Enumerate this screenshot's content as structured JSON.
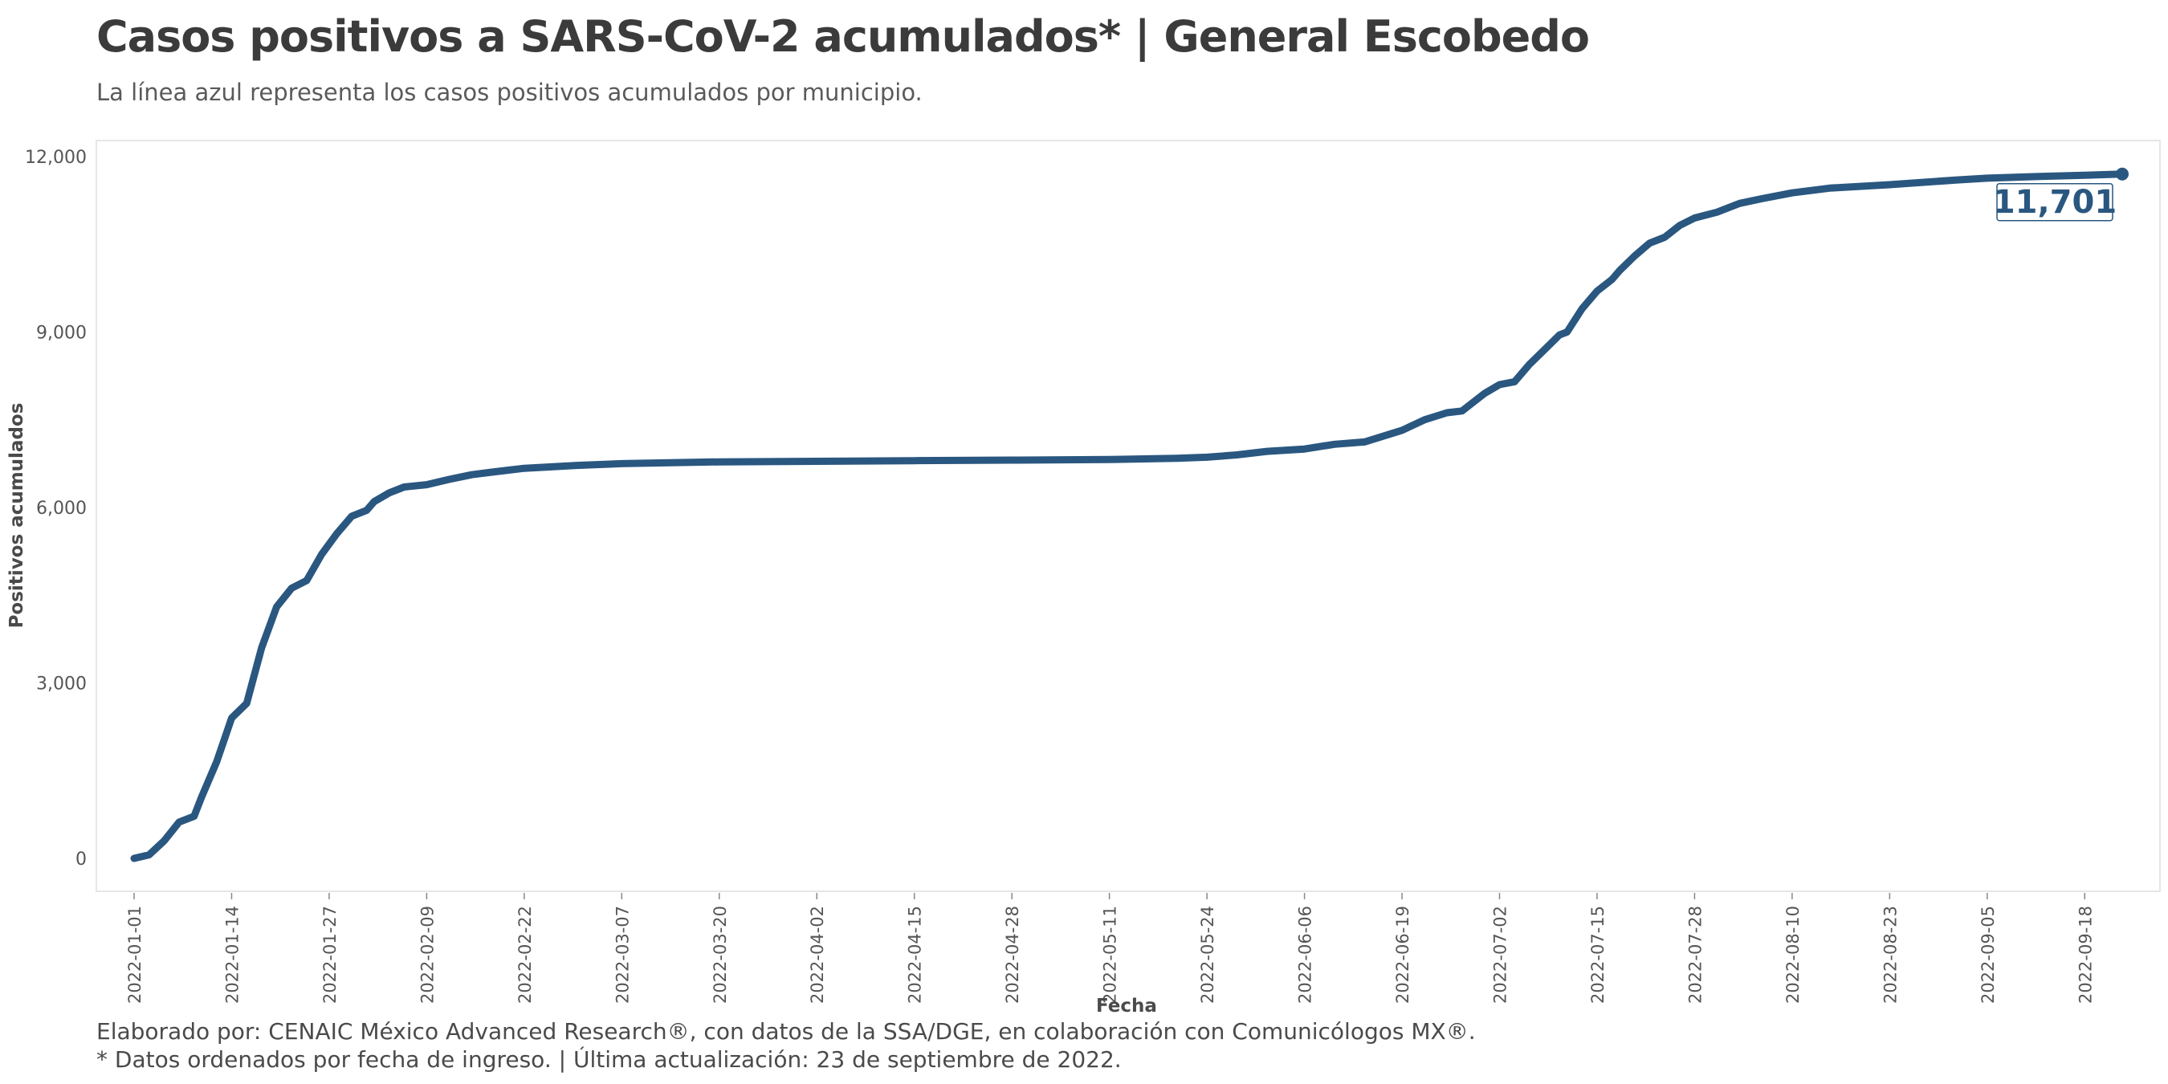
{
  "title": "Casos positivos a SARS-CoV-2 acumulados* | General Escobedo",
  "subtitle": "La línea azul representa los casos positivos acumulados por municipio.",
  "caption_line1": "Elaborado por: CENAIC México Advanced Research®, con datos de la SSA/DGE, en colaboración con Comunicólogos MX®.",
  "caption_line2": "* Datos ordenados por fecha de ingreso. | Última actualización: 23 de septiembre de 2022.",
  "colors": {
    "line": "#2a5780",
    "panel_border": "#e6e6e6",
    "text": "#3c3c3c"
  },
  "chart_data": {
    "type": "line",
    "xlabel": "Fecha",
    "ylabel": "Positivos acumulados",
    "x_range": [
      "2022-01-01",
      "2022-09-23"
    ],
    "ylim": [
      -600,
      12300
    ],
    "y_ticks": [
      0,
      3000,
      6000,
      9000,
      12000
    ],
    "y_tick_labels": [
      "0",
      "3,000",
      "6,000",
      "9,000",
      "12,000"
    ],
    "x_ticks": [
      "2022-01-01",
      "2022-01-14",
      "2022-01-27",
      "2022-02-09",
      "2022-02-22",
      "2022-03-07",
      "2022-03-20",
      "2022-04-02",
      "2022-04-15",
      "2022-04-28",
      "2022-05-11",
      "2022-05-24",
      "2022-06-06",
      "2022-06-19",
      "2022-07-02",
      "2022-07-15",
      "2022-07-28",
      "2022-08-10",
      "2022-08-23",
      "2022-09-05",
      "2022-09-18"
    ],
    "grid": false,
    "end_label": "11,701",
    "series": [
      {
        "points": [
          [
            "2022-01-01",
            0
          ],
          [
            "2022-01-03",
            60
          ],
          [
            "2022-01-05",
            300
          ],
          [
            "2022-01-07",
            620
          ],
          [
            "2022-01-09",
            720
          ],
          [
            "2022-01-10",
            1050
          ],
          [
            "2022-01-12",
            1650
          ],
          [
            "2022-01-14",
            2400
          ],
          [
            "2022-01-16",
            2650
          ],
          [
            "2022-01-18",
            3600
          ],
          [
            "2022-01-20",
            4300
          ],
          [
            "2022-01-22",
            4620
          ],
          [
            "2022-01-24",
            4750
          ],
          [
            "2022-01-26",
            5200
          ],
          [
            "2022-01-28",
            5550
          ],
          [
            "2022-01-30",
            5850
          ],
          [
            "2022-02-01",
            5950
          ],
          [
            "2022-02-02",
            6100
          ],
          [
            "2022-02-04",
            6250
          ],
          [
            "2022-02-06",
            6350
          ],
          [
            "2022-02-09",
            6390
          ],
          [
            "2022-02-12",
            6480
          ],
          [
            "2022-02-15",
            6560
          ],
          [
            "2022-02-18",
            6610
          ],
          [
            "2022-02-22",
            6670
          ],
          [
            "2022-03-01",
            6720
          ],
          [
            "2022-03-07",
            6750
          ],
          [
            "2022-03-20",
            6780
          ],
          [
            "2022-04-02",
            6790
          ],
          [
            "2022-04-15",
            6800
          ],
          [
            "2022-04-28",
            6810
          ],
          [
            "2022-05-11",
            6820
          ],
          [
            "2022-05-20",
            6840
          ],
          [
            "2022-05-24",
            6860
          ],
          [
            "2022-05-28",
            6900
          ],
          [
            "2022-06-01",
            6960
          ],
          [
            "2022-06-06",
            7000
          ],
          [
            "2022-06-10",
            7080
          ],
          [
            "2022-06-14",
            7120
          ],
          [
            "2022-06-19",
            7320
          ],
          [
            "2022-06-22",
            7500
          ],
          [
            "2022-06-25",
            7620
          ],
          [
            "2022-06-27",
            7650
          ],
          [
            "2022-06-30",
            7950
          ],
          [
            "2022-07-02",
            8100
          ],
          [
            "2022-07-04",
            8150
          ],
          [
            "2022-07-06",
            8450
          ],
          [
            "2022-07-08",
            8700
          ],
          [
            "2022-07-10",
            8950
          ],
          [
            "2022-07-11",
            9000
          ],
          [
            "2022-07-13",
            9400
          ],
          [
            "2022-07-15",
            9700
          ],
          [
            "2022-07-17",
            9900
          ],
          [
            "2022-07-18",
            10050
          ],
          [
            "2022-07-20",
            10300
          ],
          [
            "2022-07-22",
            10520
          ],
          [
            "2022-07-24",
            10620
          ],
          [
            "2022-07-26",
            10820
          ],
          [
            "2022-07-28",
            10950
          ],
          [
            "2022-07-31",
            11050
          ],
          [
            "2022-08-03",
            11200
          ],
          [
            "2022-08-06",
            11280
          ],
          [
            "2022-08-10",
            11380
          ],
          [
            "2022-08-15",
            11460
          ],
          [
            "2022-08-23",
            11520
          ],
          [
            "2022-09-01",
            11600
          ],
          [
            "2022-09-05",
            11630
          ],
          [
            "2022-09-12",
            11660
          ],
          [
            "2022-09-18",
            11680
          ],
          [
            "2022-09-23",
            11701
          ]
        ]
      }
    ]
  }
}
